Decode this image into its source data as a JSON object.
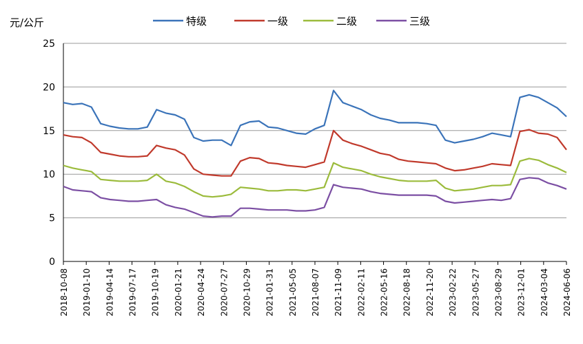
{
  "chart_data": {
    "type": "line",
    "title": "",
    "xlabel": "",
    "ylabel": "元/公斤",
    "ylim": [
      0,
      25
    ],
    "yticks": [
      0,
      5,
      10,
      15,
      20,
      25
    ],
    "grid": "horizontal",
    "legend_position": "top",
    "x_tick_labels": [
      "2018-10-08",
      "2019-01-10",
      "2019-04-14",
      "2019-07-17",
      "2019-10-19",
      "2020-01-21",
      "2020-04-24",
      "2020-07-27",
      "2020-10-29",
      "2021-01-31",
      "2021-05-05",
      "2021-08-07",
      "2021-11-09",
      "2022-02-11",
      "2022-05-16",
      "2022-08-18",
      "2022-11-20",
      "2023-02-22",
      "2023-05-27",
      "2023-08-29",
      "2023-12-01",
      "2024-03-04",
      "2024-06-06"
    ],
    "series": [
      {
        "name": "特级",
        "color": "#3a73b9",
        "values": [
          18.2,
          18,
          18.1,
          17.7,
          15.8,
          15.5,
          15.3,
          15.2,
          15.2,
          15.4,
          17.4,
          17,
          16.8,
          16.3,
          14.2,
          13.8,
          13.9,
          13.9,
          13.3,
          15.6,
          16,
          16.1,
          15.4,
          15.3,
          15,
          14.7,
          14.6,
          15.2,
          15.6,
          19.6,
          18.2,
          17.8,
          17.4,
          16.8,
          16.4,
          16.2,
          15.9,
          15.9,
          15.9,
          15.8,
          15.6,
          13.9,
          13.6,
          13.8,
          14,
          14.3,
          14.7,
          14.5,
          14.3,
          18.8,
          19.1,
          18.8,
          18.2,
          17.6,
          16.6
        ]
      },
      {
        "name": "一级",
        "color": "#c0392b",
        "values": [
          14.5,
          14.3,
          14.2,
          13.6,
          12.5,
          12.3,
          12.1,
          12,
          12,
          12.1,
          13.3,
          13,
          12.8,
          12.2,
          10.6,
          10,
          9.9,
          9.8,
          9.8,
          11.5,
          11.9,
          11.8,
          11.3,
          11.2,
          11,
          10.9,
          10.8,
          11.1,
          11.4,
          15,
          13.9,
          13.5,
          13.2,
          12.8,
          12.4,
          12.2,
          11.7,
          11.5,
          11.4,
          11.3,
          11.2,
          10.7,
          10.4,
          10.5,
          10.7,
          10.9,
          11.2,
          11.1,
          11,
          14.9,
          15.1,
          14.7,
          14.6,
          14.2,
          12.8
        ]
      },
      {
        "name": "二级",
        "color": "#9bbb3b",
        "values": [
          11,
          10.7,
          10.5,
          10.3,
          9.4,
          9.3,
          9.2,
          9.2,
          9.2,
          9.3,
          10,
          9.2,
          9,
          8.6,
          8,
          7.5,
          7.4,
          7.5,
          7.7,
          8.5,
          8.4,
          8.3,
          8.1,
          8.1,
          8.2,
          8.2,
          8.1,
          8.3,
          8.5,
          11.3,
          10.8,
          10.6,
          10.4,
          10,
          9.7,
          9.5,
          9.3,
          9.2,
          9.2,
          9.2,
          9.3,
          8.4,
          8.1,
          8.2,
          8.3,
          8.5,
          8.7,
          8.7,
          8.8,
          11.5,
          11.8,
          11.6,
          11.1,
          10.7,
          10.2
        ]
      },
      {
        "name": "三级",
        "color": "#7b4ea3",
        "values": [
          8.6,
          8.2,
          8.1,
          8,
          7.3,
          7.1,
          7,
          6.9,
          6.9,
          7,
          7.1,
          6.5,
          6.2,
          6,
          5.6,
          5.2,
          5.1,
          5.2,
          5.2,
          6.1,
          6.1,
          6,
          5.9,
          5.9,
          5.9,
          5.8,
          5.8,
          5.9,
          6.2,
          8.8,
          8.5,
          8.4,
          8.3,
          8,
          7.8,
          7.7,
          7.6,
          7.6,
          7.6,
          7.6,
          7.5,
          6.9,
          6.7,
          6.8,
          6.9,
          7,
          7.1,
          7,
          7.2,
          9.4,
          9.6,
          9.5,
          9,
          8.7,
          8.3
        ]
      }
    ]
  }
}
